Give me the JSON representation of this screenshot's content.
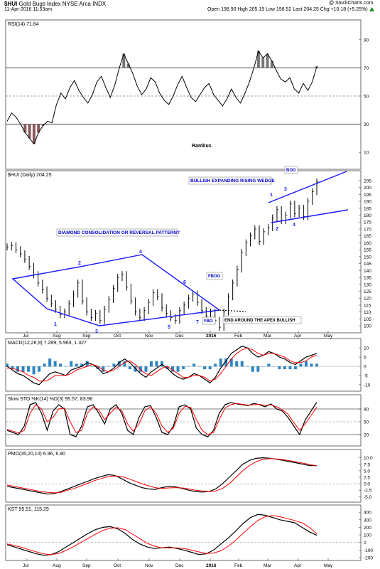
{
  "header": {
    "symbol": "$HUI",
    "name": "Gold Bugs Index",
    "exchange": "NYSE Arca INDX",
    "date": "11-Apr-2016 11:53am",
    "ohlc": "Open 198.90  High 205.19  Low 198.52  Last 204.25  Chg +10.18 (+5.25%)",
    "copyright": "@ StockCharts.com",
    "change_up_icon": "triangle-up-icon"
  },
  "colors": {
    "price": "#000000",
    "signal": "#ff0000",
    "pattern": "#1a1aff",
    "rsi_fill": "#8b5a5a",
    "macd_hist": "#2e86c1",
    "note": "#0000cc"
  },
  "chart_data": [
    {
      "type": "line",
      "title": "RSI(14) 71.64",
      "ylim": [
        0,
        100
      ],
      "yticks": [
        "90",
        "70",
        "50",
        "30",
        "10"
      ],
      "watermark": "Rambus",
      "series": [
        {
          "values": [
            32,
            38,
            35,
            30,
            24,
            20,
            16,
            24,
            29,
            32,
            31,
            44,
            52,
            48,
            56,
            61,
            54,
            49,
            45,
            51,
            60,
            64,
            56,
            49,
            58,
            70,
            80,
            73,
            66,
            57,
            51,
            55,
            63,
            60,
            52,
            47,
            44,
            50,
            58,
            64,
            56,
            49,
            46,
            51,
            56,
            59,
            51,
            47,
            43,
            48,
            55,
            49,
            45,
            52,
            60,
            70,
            82,
            77,
            80,
            75,
            68,
            62,
            60,
            63,
            55,
            52,
            59,
            54,
            60,
            71
          ]
        }
      ]
    },
    {
      "type": "bar",
      "title": "$HUI (Daily) 204.25",
      "ylim": [
        97,
        208
      ],
      "yticks": [
        "205",
        "200",
        "195",
        "190",
        "185",
        "180",
        "175",
        "170",
        "165",
        "160",
        "155",
        "150",
        "145",
        "140",
        "135",
        "130",
        "125",
        "120",
        "115",
        "110",
        "105",
        "100"
      ],
      "xticks": [
        "Jul",
        "Aug",
        "Sep",
        "Oct",
        "Nov",
        "Dec",
        "2016",
        "Feb",
        "Mar",
        "Apr",
        "May"
      ],
      "series": [
        {
          "values": [
            157,
            158,
            155,
            152,
            148,
            143,
            137,
            131,
            126,
            120,
            116,
            112,
            108,
            110,
            116,
            123,
            131,
            118,
            110,
            106,
            109,
            104,
            112,
            119,
            127,
            135,
            137,
            128,
            118,
            110,
            106,
            111,
            117,
            124,
            121,
            113,
            109,
            106,
            104,
            111,
            115,
            120,
            123,
            117,
            111,
            107,
            110,
            104,
            99,
            110,
            121,
            131,
            141,
            153,
            160,
            165,
            170,
            161,
            168,
            171,
            178,
            184,
            176,
            180,
            188,
            181,
            185,
            179,
            190,
            197,
            204
          ]
        }
      ],
      "annotations": [
        "DIAMOND CONSOLIDATION  OR REVERSAL PATTERN?",
        "BULLISH EXPANDING RISING WEDGE",
        "END AROUND THE APEX BULLISH",
        "FBOG",
        "FBO",
        "BOG",
        "1",
        "2",
        "3",
        "4",
        "5",
        "6",
        "7",
        "1",
        "2",
        "3",
        "4"
      ]
    },
    {
      "type": "line",
      "title": "MACD(12,26,9) 7.289, 5.963, 1.327",
      "ylim": [
        -12,
        12
      ],
      "yticks": [
        "10",
        "5",
        "0",
        "-5",
        "-10"
      ],
      "series": [
        {
          "values": [
            0,
            -2,
            -4,
            -5,
            -7,
            -9,
            -10,
            -7,
            -4,
            -3,
            -4,
            -5,
            -2,
            -1,
            0,
            2,
            1,
            -1,
            -4,
            -3,
            -1,
            2,
            4,
            2,
            -1,
            -4,
            -6,
            -3,
            -1,
            1,
            -1,
            -4,
            -6,
            -7,
            -6,
            -4,
            -5,
            -7,
            -9,
            -6,
            -1,
            3,
            7,
            9,
            11,
            10,
            7,
            5,
            6,
            8,
            7,
            5,
            4,
            2,
            1,
            3,
            5,
            6,
            7
          ]
        },
        {
          "values": [
            -1,
            -1,
            -2,
            -3,
            -5,
            -6,
            -8,
            -8,
            -7,
            -5,
            -5,
            -5,
            -4,
            -2,
            -1,
            0,
            1,
            0,
            -2,
            -3,
            -2,
            0,
            2,
            3,
            1,
            -2,
            -4,
            -5,
            -3,
            -1,
            0,
            -2,
            -4,
            -6,
            -6,
            -5,
            -5,
            -6,
            -8,
            -7,
            -4,
            0,
            4,
            7,
            9,
            10,
            9,
            7,
            6,
            7,
            7,
            6,
            5,
            3,
            2,
            2,
            3,
            5,
            6
          ]
        }
      ]
    },
    {
      "type": "line",
      "title": "Slow STO %K(14) %D(3) 95.57, 83.96",
      "ylim": [
        0,
        100
      ],
      "yticks": [
        "80",
        "50",
        "20"
      ],
      "series": [
        {
          "values": [
            30,
            25,
            20,
            40,
            90,
            95,
            70,
            30,
            75,
            90,
            80,
            20,
            15,
            40,
            85,
            90,
            70,
            45,
            80,
            90,
            70,
            30,
            20,
            60,
            85,
            88,
            60,
            25,
            20,
            40,
            85,
            90,
            80,
            35,
            20,
            15,
            30,
            70,
            90,
            95,
            92,
            90,
            88,
            93,
            90,
            85,
            92,
            80,
            75,
            60,
            40,
            20,
            55,
            75,
            96
          ]
        },
        {
          "values": [
            32,
            28,
            24,
            30,
            70,
            90,
            80,
            50,
            60,
            80,
            82,
            50,
            25,
            30,
            70,
            85,
            78,
            55,
            70,
            84,
            76,
            45,
            28,
            45,
            75,
            85,
            70,
            40,
            25,
            35,
            70,
            86,
            84,
            55,
            30,
            20,
            25,
            55,
            82,
            90,
            93,
            91,
            89,
            90,
            91,
            88,
            90,
            85,
            78,
            68,
            48,
            30,
            45,
            65,
            84
          ]
        }
      ]
    },
    {
      "type": "line",
      "title": "PMO(35,20,10) 6.96, 6.90",
      "ylim": [
        -6,
        11
      ],
      "yticks": [
        "10.0",
        "7.5",
        "5.0",
        "2.5",
        "0.0",
        "-2.5",
        "-5.0"
      ],
      "series": [
        {
          "values": [
            -1,
            -1.5,
            -2,
            -2.5,
            -3,
            -3.5,
            -4,
            -3.8,
            -3,
            -2,
            -1,
            0,
            1,
            2,
            2.8,
            3.5,
            3.2,
            2,
            0.5,
            -0.5,
            -1.5,
            -2,
            -2.2,
            -1.5,
            -1,
            -1.2,
            -1.8,
            -2.5,
            -3,
            -3.2,
            -3,
            -2,
            0,
            2.5,
            5,
            7.5,
            9,
            9.8,
            10,
            9.8,
            9.5,
            9,
            8.5,
            8,
            7.5,
            7,
            6.96
          ]
        },
        {
          "values": [
            -0.5,
            -1,
            -1.5,
            -2,
            -2.5,
            -3,
            -3.3,
            -3.5,
            -3.3,
            -2.5,
            -1.8,
            -0.8,
            0.2,
            1.2,
            2,
            2.8,
            3,
            2.8,
            2,
            1,
            0,
            -0.8,
            -1.5,
            -1.8,
            -1.6,
            -1.5,
            -1.6,
            -2,
            -2.5,
            -2.8,
            -3,
            -2.8,
            -1.8,
            0,
            2.5,
            5,
            7,
            8.5,
            9.4,
            9.7,
            9.6,
            9.3,
            8.9,
            8.4,
            7.9,
            7.4,
            6.9
          ]
        }
      ]
    },
    {
      "type": "line",
      "title": "KST 95.51, 115.29",
      "ylim": [
        -200,
        420
      ],
      "yticks": [
        "400",
        "300",
        "200",
        "100",
        "0",
        "-100",
        "-200"
      ],
      "xticks": [
        "Jul",
        "Aug",
        "Sep",
        "Oct",
        "Nov",
        "Dec",
        "2016",
        "Feb",
        "Mar",
        "Apr",
        "May"
      ],
      "series": [
        {
          "values": [
            -30,
            -60,
            -90,
            -120,
            -150,
            -170,
            -160,
            -120,
            -60,
            0,
            60,
            120,
            170,
            200,
            210,
            180,
            120,
            40,
            -20,
            -60,
            -80,
            -70,
            -60,
            -80,
            -100,
            -130,
            -160,
            -150,
            -100,
            -20,
            60,
            150,
            250,
            330,
            370,
            360,
            330,
            300,
            280,
            260,
            200,
            140,
            95
          ]
        },
        {
          "values": [
            -20,
            -40,
            -65,
            -95,
            -125,
            -150,
            -160,
            -145,
            -105,
            -55,
            0,
            55,
            110,
            160,
            190,
            195,
            170,
            110,
            50,
            -10,
            -50,
            -70,
            -70,
            -70,
            -80,
            -100,
            -125,
            -145,
            -140,
            -110,
            -50,
            30,
            120,
            210,
            290,
            340,
            355,
            340,
            315,
            290,
            260,
            200,
            115
          ]
        }
      ]
    }
  ]
}
